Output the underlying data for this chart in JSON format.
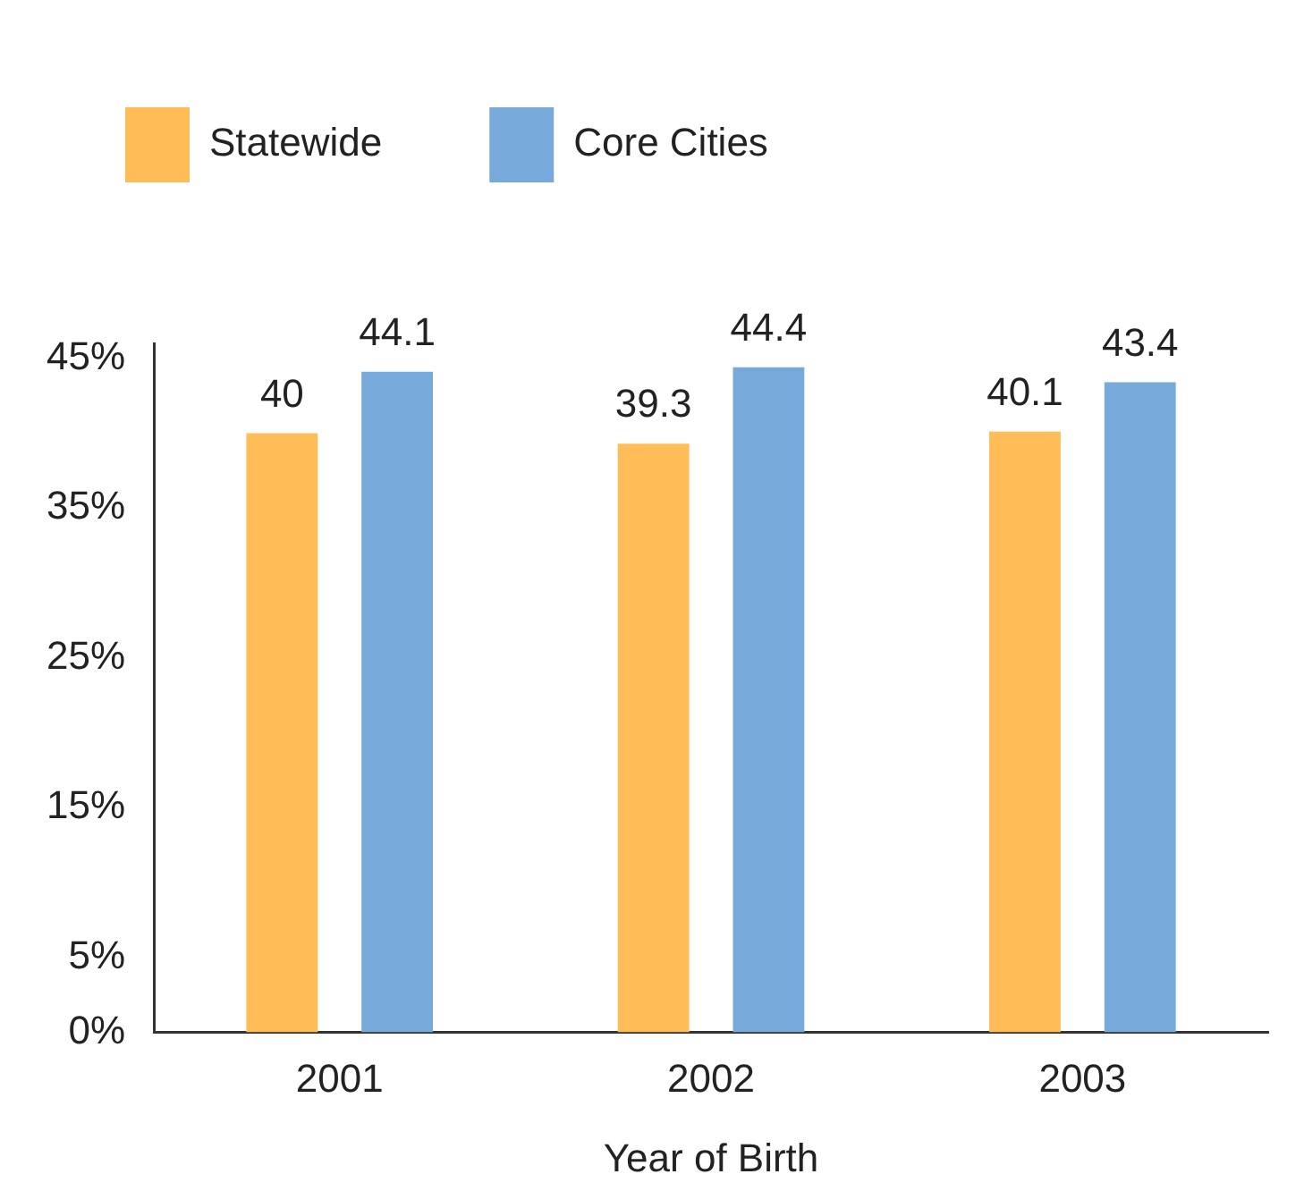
{
  "chart_data": {
    "type": "bar",
    "xlabel": "Year of Birth",
    "categories": [
      "2001",
      "2002",
      "2003"
    ],
    "series": [
      {
        "name": "Statewide",
        "color": "#ffbc57",
        "values": [
          40,
          39.3,
          40.1
        ]
      },
      {
        "name": "Core Cities",
        "color": "#78a9db",
        "values": [
          44.1,
          44.4,
          43.4
        ]
      }
    ],
    "ylim": [
      0,
      46
    ],
    "yticks": [
      {
        "value": 0,
        "label": "0%"
      },
      {
        "value": 5,
        "label": "5%"
      },
      {
        "value": 15,
        "label": "15%"
      },
      {
        "value": 25,
        "label": "25%"
      },
      {
        "value": 35,
        "label": "35%"
      },
      {
        "value": 45,
        "label": "45%"
      }
    ],
    "data_labels": true,
    "grid": false,
    "legend": "top left"
  }
}
